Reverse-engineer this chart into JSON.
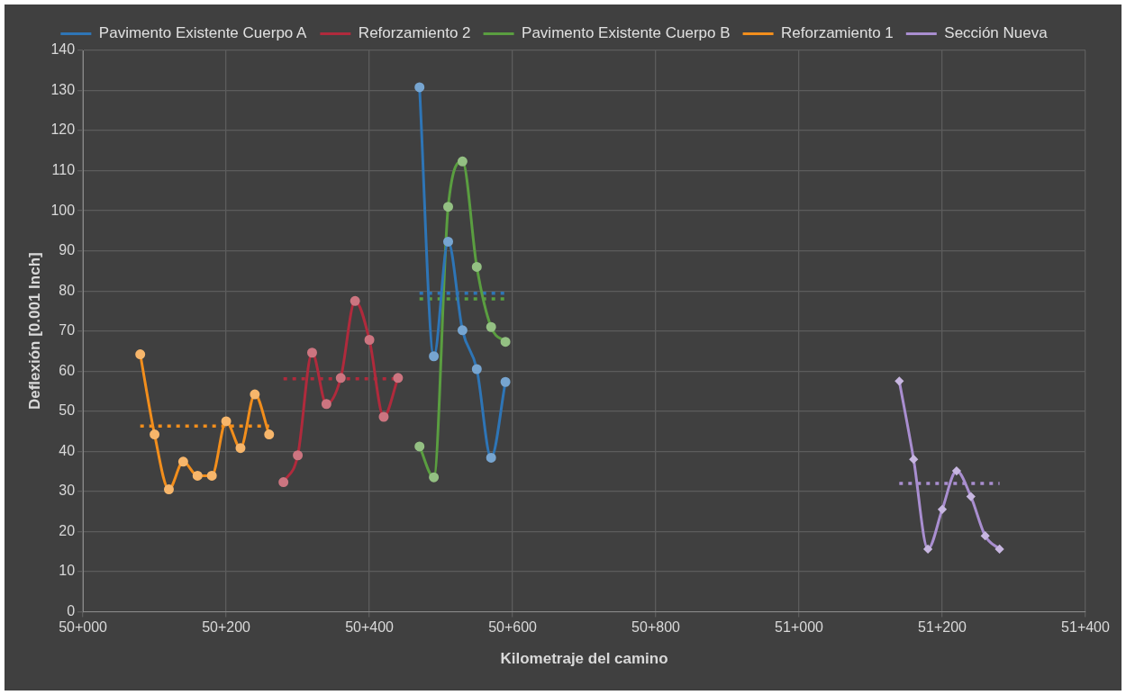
{
  "chart_data": {
    "type": "line",
    "xlabel": "Kilometraje del camino",
    "ylabel": "Deflexión [0.001 Inch]",
    "categories": [
      "50+000",
      null,
      null,
      null,
      null,
      null,
      null,
      null,
      null,
      null,
      null,
      null,
      null,
      null,
      null,
      null,
      null,
      null,
      null,
      null,
      "50+200",
      null,
      null,
      null,
      null,
      null,
      null,
      null,
      null,
      null,
      null,
      null,
      null,
      null,
      null,
      null,
      null,
      null,
      null,
      null,
      "50+400",
      null,
      null,
      null,
      null,
      null,
      null,
      null,
      null,
      null,
      null,
      null,
      null,
      null,
      null,
      null,
      null,
      null,
      null,
      null,
      "50+600",
      null,
      null,
      null,
      null,
      null,
      null,
      null,
      null,
      null,
      null,
      null,
      null,
      null,
      null,
      null,
      null,
      null,
      null,
      null,
      "50+800",
      null,
      null,
      null,
      null,
      null,
      null,
      null,
      null,
      null,
      null,
      null,
      null,
      null,
      null,
      null,
      null,
      null,
      null,
      null,
      "51+000",
      null,
      null,
      null,
      null,
      null,
      null,
      null,
      null,
      null,
      null,
      null,
      null,
      null,
      null,
      null,
      null,
      null,
      null,
      null,
      "51+200",
      null,
      null,
      null,
      null,
      null,
      null,
      null,
      null,
      null,
      null,
      null,
      null,
      null,
      null,
      null,
      null,
      null,
      null,
      null,
      "51+400"
    ],
    "ylim": [
      0,
      140
    ],
    "yticks": [
      0,
      10,
      20,
      30,
      40,
      50,
      60,
      70,
      80,
      90,
      100,
      110,
      120,
      130,
      140
    ],
    "grid": true,
    "legend": "top",
    "line_style": "solid",
    "series": [
      {
        "name": "Pavimento Existente Cuerpo A",
        "color": "#2e75b6",
        "marker": "circle",
        "values": [
          null,
          null,
          null,
          null,
          null,
          null,
          null,
          null,
          null,
          null,
          null,
          null,
          null,
          null,
          null,
          null,
          null,
          null,
          null,
          null,
          null,
          null,
          null,
          null,
          null,
          null,
          null,
          null,
          null,
          null,
          null,
          null,
          null,
          null,
          null,
          null,
          null,
          null,
          null,
          null,
          null,
          null,
          null,
          null,
          null,
          null,
          null,
          130.8,
          null,
          63.7,
          null,
          92.3,
          null,
          70.2,
          null,
          60.5,
          null,
          38.4,
          null,
          57.3,
          null,
          null,
          null,
          null,
          null,
          null,
          null,
          null,
          null,
          null,
          null,
          null,
          null,
          null,
          null,
          null,
          null,
          null,
          null,
          null,
          null,
          null,
          null,
          null,
          null,
          null,
          null,
          null,
          null,
          null,
          null,
          null,
          null,
          null,
          null,
          null,
          null,
          null,
          null,
          null,
          null,
          null,
          null,
          null,
          null,
          null,
          null,
          null,
          null,
          null,
          null,
          null,
          null,
          null,
          null,
          null,
          null,
          null,
          null,
          null,
          null,
          null,
          null,
          null,
          null,
          null,
          null,
          null,
          null,
          null,
          null,
          null,
          null,
          null,
          null,
          null,
          null,
          null,
          null,
          null,
          null
        ]
      },
      {
        "name": "Reforzamiento 2",
        "color": "#b02a3c",
        "marker": "circle",
        "values": [
          null,
          null,
          null,
          null,
          null,
          null,
          null,
          null,
          null,
          null,
          null,
          null,
          null,
          null,
          null,
          null,
          null,
          null,
          null,
          null,
          null,
          null,
          null,
          null,
          null,
          null,
          null,
          null,
          32.3,
          null,
          39.0,
          null,
          64.6,
          null,
          51.8,
          null,
          58.3,
          null,
          77.5,
          null,
          67.8,
          null,
          48.6,
          null,
          58.3,
          null,
          null,
          null,
          null,
          null,
          null,
          null,
          null,
          null,
          null,
          null,
          null,
          null,
          null,
          null,
          null,
          null,
          null,
          null,
          null,
          null,
          null,
          null,
          null,
          null,
          null,
          null,
          null,
          null,
          null,
          null,
          null,
          null,
          null,
          null,
          null,
          null,
          null,
          null,
          null,
          null,
          null,
          null,
          null,
          null,
          null,
          null,
          null,
          null,
          null,
          null,
          null,
          null,
          null,
          null,
          null,
          null,
          null,
          null,
          null,
          null,
          null,
          null,
          null,
          null,
          null,
          null,
          null,
          null,
          null,
          null,
          null,
          null,
          null,
          null,
          null,
          null,
          null,
          null,
          null,
          null,
          null,
          null,
          null,
          null,
          null,
          null,
          null,
          null,
          null,
          null,
          null,
          null,
          null,
          null,
          null
        ]
      },
      {
        "name": "Pavimento Existente Cuerpo B",
        "color": "#5a9e40",
        "marker": "circle",
        "values": [
          null,
          null,
          null,
          null,
          null,
          null,
          null,
          null,
          null,
          null,
          null,
          null,
          null,
          null,
          null,
          null,
          null,
          null,
          null,
          null,
          null,
          null,
          null,
          null,
          null,
          null,
          null,
          null,
          null,
          null,
          null,
          null,
          null,
          null,
          null,
          null,
          null,
          null,
          null,
          null,
          null,
          null,
          null,
          null,
          null,
          null,
          null,
          41.2,
          null,
          33.5,
          null,
          101.0,
          null,
          112.3,
          null,
          86.0,
          null,
          71.0,
          null,
          67.3,
          null,
          null,
          null,
          null,
          null,
          null,
          null,
          null,
          null,
          null,
          null,
          null,
          null,
          null,
          null,
          null,
          null,
          null,
          null,
          null,
          null,
          null,
          null,
          null,
          null,
          null,
          null,
          null,
          null,
          null,
          null,
          null,
          null,
          null,
          null,
          null,
          null,
          null,
          null,
          null,
          null,
          null,
          null,
          null,
          null,
          null,
          null,
          null,
          null,
          null,
          null,
          null,
          null,
          null,
          null,
          null,
          null,
          null,
          null,
          null,
          null,
          null,
          null,
          null,
          null,
          null,
          null,
          null,
          null,
          null,
          null,
          null,
          null,
          null,
          null,
          null,
          null,
          null,
          null,
          null,
          null
        ]
      },
      {
        "name": "Reforzamiento 1",
        "color": "#f28e1c",
        "marker": "circle",
        "values": [
          null,
          null,
          null,
          null,
          null,
          null,
          null,
          null,
          64.2,
          null,
          44.2,
          null,
          30.5,
          null,
          37.4,
          null,
          33.9,
          null,
          33.9,
          null,
          47.5,
          null,
          40.8,
          null,
          54.2,
          null,
          44.2,
          null,
          null,
          null,
          null,
          null,
          null,
          null,
          null,
          null,
          null,
          null,
          null,
          null,
          null,
          null,
          null,
          null,
          null,
          null,
          null,
          null,
          null,
          null,
          null,
          null,
          null,
          null,
          null,
          null,
          null,
          null,
          null,
          null,
          null,
          null,
          null,
          null,
          null,
          null,
          null,
          null,
          null,
          null,
          null,
          null,
          null,
          null,
          null,
          null,
          null,
          null,
          null,
          null,
          null,
          null,
          null,
          null,
          null,
          null,
          null,
          null,
          null,
          null,
          null,
          null,
          null,
          null,
          null,
          null,
          null,
          null,
          null,
          null,
          null,
          null,
          null,
          null,
          null,
          null,
          null,
          null,
          null,
          null,
          null,
          null,
          null,
          null,
          null,
          null,
          null,
          null,
          null,
          null,
          null,
          null,
          null,
          null,
          null,
          null,
          null,
          null,
          null,
          null,
          null,
          null,
          null,
          null,
          null,
          null,
          null,
          null,
          null,
          null,
          null
        ]
      },
      {
        "name": "Sección Nueva",
        "color": "#a98ed0",
        "marker": "diamond",
        "values": [
          null,
          null,
          null,
          null,
          null,
          null,
          null,
          null,
          null,
          null,
          null,
          null,
          null,
          null,
          null,
          null,
          null,
          null,
          null,
          null,
          null,
          null,
          null,
          null,
          null,
          null,
          null,
          null,
          null,
          null,
          null,
          null,
          null,
          null,
          null,
          null,
          null,
          null,
          null,
          null,
          null,
          null,
          null,
          null,
          null,
          null,
          null,
          null,
          null,
          null,
          null,
          null,
          null,
          null,
          null,
          null,
          null,
          null,
          null,
          null,
          null,
          null,
          null,
          null,
          null,
          null,
          null,
          null,
          null,
          null,
          null,
          null,
          null,
          null,
          null,
          null,
          null,
          null,
          null,
          null,
          null,
          null,
          null,
          null,
          null,
          null,
          null,
          null,
          null,
          null,
          null,
          null,
          null,
          null,
          null,
          null,
          null,
          null,
          null,
          null,
          null,
          null,
          null,
          null,
          null,
          null,
          null,
          null,
          null,
          null,
          null,
          null,
          null,
          null,
          57.5,
          null,
          38.0,
          null,
          15.6,
          null,
          25.5,
          null,
          35.1,
          null,
          28.7,
          null,
          18.9,
          null,
          15.6,
          null,
          null,
          null,
          null,
          null,
          null,
          null,
          null,
          null,
          null,
          null,
          null
        ]
      },
      {
        "color": "#2e75b6",
        "marker": "none",
        "line_style": "dotted",
        "values": [
          null,
          null,
          null,
          null,
          null,
          null,
          null,
          null,
          null,
          null,
          null,
          null,
          null,
          null,
          null,
          null,
          null,
          null,
          null,
          null,
          null,
          null,
          null,
          null,
          null,
          null,
          null,
          null,
          null,
          null,
          null,
          null,
          null,
          null,
          null,
          null,
          null,
          null,
          null,
          null,
          null,
          null,
          null,
          null,
          null,
          null,
          null,
          79.4,
          null,
          null,
          null,
          null,
          null,
          null,
          null,
          null,
          null,
          null,
          null,
          79.4,
          null,
          null,
          null,
          null,
          null,
          null,
          null,
          null,
          null,
          null,
          null,
          null,
          null,
          null,
          null,
          null,
          null,
          null,
          null,
          null,
          null,
          null,
          null,
          null,
          null,
          null,
          null,
          null,
          null,
          null,
          null,
          null,
          null,
          null,
          null,
          null,
          null,
          null,
          null,
          null,
          null,
          null,
          null,
          null,
          null,
          null,
          null,
          null,
          null,
          null,
          null,
          null,
          null,
          null,
          null,
          null,
          null,
          null,
          null,
          null,
          null,
          null,
          null,
          null,
          null,
          null,
          null,
          null,
          null,
          null,
          null,
          null,
          null,
          null,
          null,
          null,
          null,
          null,
          null,
          null,
          null
        ]
      },
      {
        "color": "#b02a3c",
        "marker": "none",
        "line_style": "dotted",
        "values": [
          null,
          null,
          null,
          null,
          null,
          null,
          null,
          null,
          null,
          null,
          null,
          null,
          null,
          null,
          null,
          null,
          null,
          null,
          null,
          null,
          null,
          null,
          null,
          null,
          null,
          null,
          null,
          null,
          58.1,
          null,
          null,
          null,
          null,
          null,
          null,
          null,
          null,
          null,
          null,
          null,
          null,
          null,
          null,
          null,
          58.1,
          null,
          null,
          null,
          null,
          null,
          null,
          null,
          null,
          null,
          null,
          null,
          null,
          null,
          null,
          null,
          null,
          null,
          null,
          null,
          null,
          null,
          null,
          null,
          null,
          null,
          null,
          null,
          null,
          null,
          null,
          null,
          null,
          null,
          null,
          null,
          null,
          null,
          null,
          null,
          null,
          null,
          null,
          null,
          null,
          null,
          null,
          null,
          null,
          null,
          null,
          null,
          null,
          null,
          null,
          null,
          null,
          null,
          null,
          null,
          null,
          null,
          null,
          null,
          null,
          null,
          null,
          null,
          null,
          null,
          null,
          null,
          null,
          null,
          null,
          null,
          null,
          null,
          null,
          null,
          null,
          null,
          null,
          null,
          null,
          null,
          null,
          null,
          null,
          null,
          null,
          null,
          null,
          null,
          null,
          null,
          null
        ]
      },
      {
        "color": "#5a9e40",
        "marker": "none",
        "line_style": "dotted",
        "values": [
          null,
          null,
          null,
          null,
          null,
          null,
          null,
          null,
          null,
          null,
          null,
          null,
          null,
          null,
          null,
          null,
          null,
          null,
          null,
          null,
          null,
          null,
          null,
          null,
          null,
          null,
          null,
          null,
          null,
          null,
          null,
          null,
          null,
          null,
          null,
          null,
          null,
          null,
          null,
          null,
          null,
          null,
          null,
          null,
          null,
          null,
          null,
          78.0,
          null,
          null,
          null,
          null,
          null,
          null,
          null,
          null,
          null,
          null,
          null,
          78.0,
          null,
          null,
          null,
          null,
          null,
          null,
          null,
          null,
          null,
          null,
          null,
          null,
          null,
          null,
          null,
          null,
          null,
          null,
          null,
          null,
          null,
          null,
          null,
          null,
          null,
          null,
          null,
          null,
          null,
          null,
          null,
          null,
          null,
          null,
          null,
          null,
          null,
          null,
          null,
          null,
          null,
          null,
          null,
          null,
          null,
          null,
          null,
          null,
          null,
          null,
          null,
          null,
          null,
          null,
          null,
          null,
          null,
          null,
          null,
          null,
          null,
          null,
          null,
          null,
          null,
          null,
          null,
          null,
          null,
          null,
          null,
          null,
          null,
          null,
          null,
          null,
          null,
          null,
          null,
          null,
          null
        ]
      },
      {
        "color": "#f28e1c",
        "marker": "none",
        "line_style": "dotted",
        "values": [
          null,
          null,
          null,
          null,
          null,
          null,
          null,
          null,
          46.3,
          null,
          null,
          null,
          null,
          null,
          null,
          null,
          null,
          null,
          null,
          null,
          null,
          null,
          null,
          null,
          null,
          null,
          46.3,
          null,
          null,
          null,
          null,
          null,
          null,
          null,
          null,
          null,
          null,
          null,
          null,
          null,
          null,
          null,
          null,
          null,
          null,
          null,
          null,
          null,
          null,
          null,
          null,
          null,
          null,
          null,
          null,
          null,
          null,
          null,
          null,
          null,
          null,
          null,
          null,
          null,
          null,
          null,
          null,
          null,
          null,
          null,
          null,
          null,
          null,
          null,
          null,
          null,
          null,
          null,
          null,
          null,
          null,
          null,
          null,
          null,
          null,
          null,
          null,
          null,
          null,
          null,
          null,
          null,
          null,
          null,
          null,
          null,
          null,
          null,
          null,
          null,
          null,
          null,
          null,
          null,
          null,
          null,
          null,
          null,
          null,
          null,
          null,
          null,
          null,
          null,
          null,
          null,
          null,
          null,
          null,
          null,
          null,
          null,
          null,
          null,
          null,
          null,
          null,
          null,
          null,
          null,
          null,
          null,
          null,
          null,
          null,
          null,
          null,
          null,
          null,
          null,
          null
        ]
      },
      {
        "color": "#a98ed0",
        "marker": "none",
        "line_style": "dotted",
        "values": [
          null,
          null,
          null,
          null,
          null,
          null,
          null,
          null,
          null,
          null,
          null,
          null,
          null,
          null,
          null,
          null,
          null,
          null,
          null,
          null,
          null,
          null,
          null,
          null,
          null,
          null,
          null,
          null,
          null,
          null,
          null,
          null,
          null,
          null,
          null,
          null,
          null,
          null,
          null,
          null,
          null,
          null,
          null,
          null,
          null,
          null,
          null,
          null,
          null,
          null,
          null,
          null,
          null,
          null,
          null,
          null,
          null,
          null,
          null,
          null,
          null,
          null,
          null,
          null,
          null,
          null,
          null,
          null,
          null,
          null,
          null,
          null,
          null,
          null,
          null,
          null,
          null,
          null,
          null,
          null,
          null,
          null,
          null,
          null,
          null,
          null,
          null,
          null,
          null,
          null,
          null,
          null,
          null,
          null,
          null,
          null,
          null,
          null,
          null,
          null,
          null,
          null,
          null,
          null,
          null,
          null,
          null,
          null,
          null,
          null,
          null,
          null,
          null,
          null,
          32.0,
          null,
          null,
          null,
          null,
          null,
          null,
          null,
          null,
          null,
          null,
          null,
          null,
          null,
          32.0,
          null,
          null,
          null,
          null,
          null,
          null,
          null,
          null,
          null,
          null,
          null,
          null
        ]
      }
    ]
  }
}
